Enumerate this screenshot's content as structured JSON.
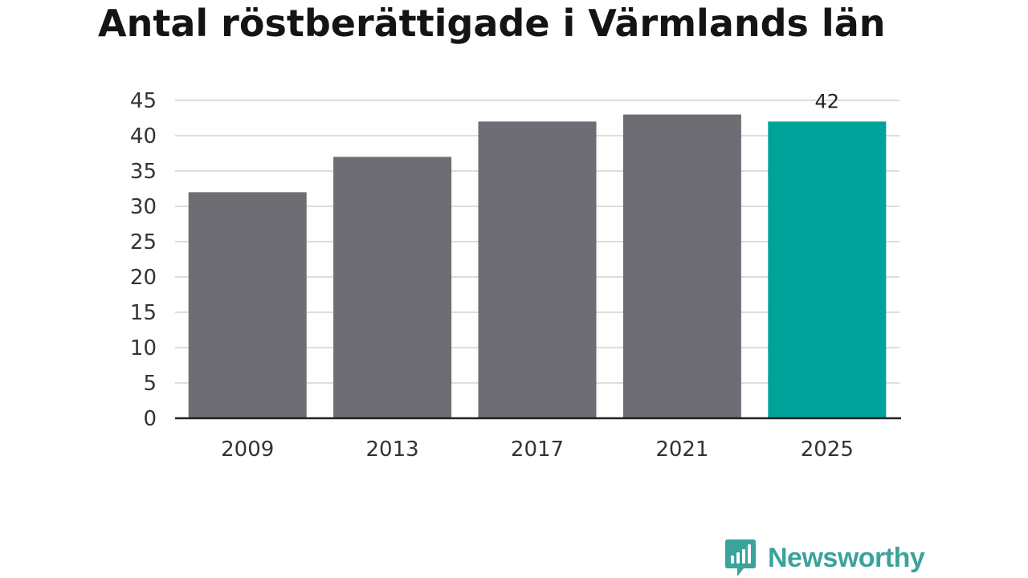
{
  "chart_data": {
    "type": "bar",
    "title": "Antal röstberättigade i Värmlands län",
    "categories": [
      "2009",
      "2013",
      "2017",
      "2021",
      "2025"
    ],
    "values": [
      32,
      37,
      42,
      43,
      42
    ],
    "ylim": [
      0,
      45
    ],
    "yticks": [
      0,
      5,
      10,
      15,
      20,
      25,
      30,
      35,
      40,
      45
    ],
    "grid": true,
    "highlight_index": 4,
    "data_labels": [
      {
        "index": 4,
        "text": "42"
      }
    ],
    "colors": {
      "bar": "#6e6d73",
      "highlight": "#00a39a",
      "grid": "#dddddd",
      "axis": "#222222",
      "text": "#333333",
      "title": "#141414"
    }
  },
  "brand": {
    "name": "Newsworthy",
    "icon": "bar-chart-speech-bubble-icon",
    "color": "#3aa39b"
  }
}
